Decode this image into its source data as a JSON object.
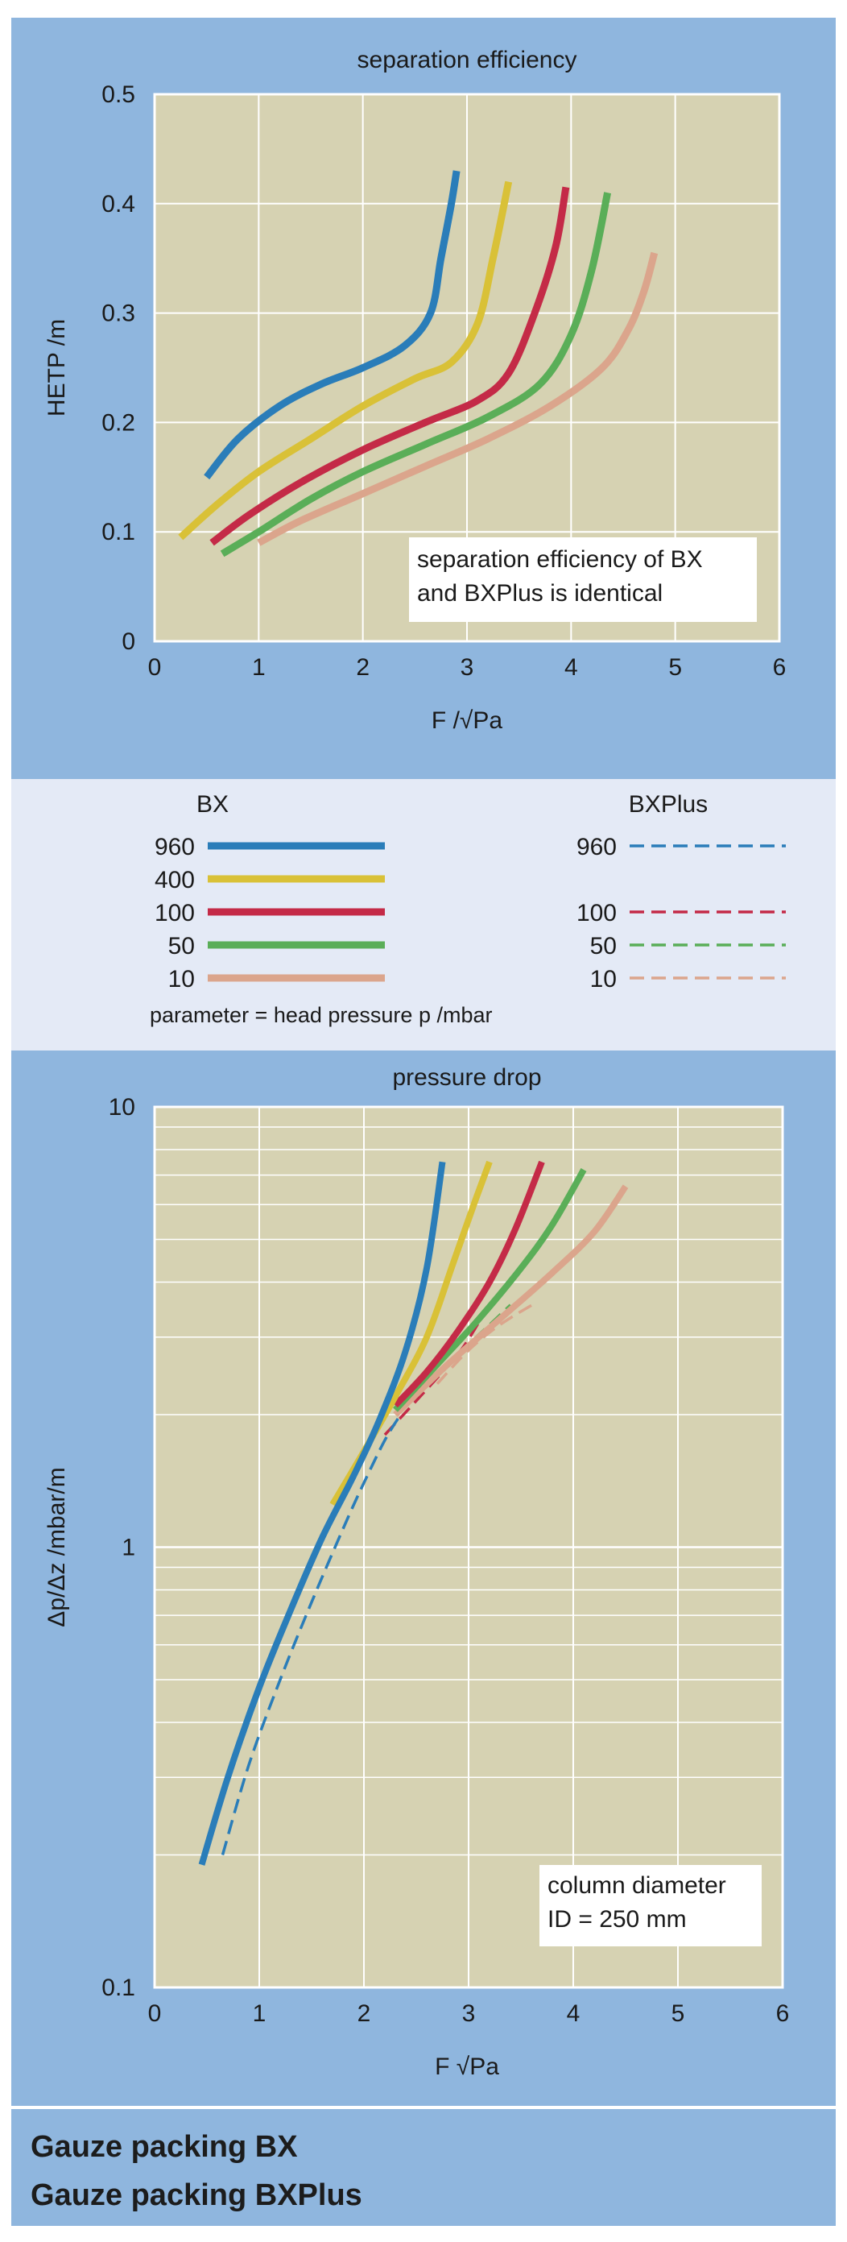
{
  "chart_data": [
    {
      "type": "line",
      "title": "separation efficiency",
      "xlabel": "F /√Pa",
      "ylabel": "HETP /m",
      "xlim": [
        0,
        6
      ],
      "ylim": [
        0,
        0.5
      ],
      "xticks": [
        "0",
        "1",
        "2",
        "3",
        "4",
        "5",
        "6"
      ],
      "yticks": [
        "0",
        "0.1",
        "0.2",
        "0.3",
        "0.4",
        "0.5"
      ],
      "grid": true,
      "annotation": [
        "separation efficiency of BX",
        "and BXPlus is identical"
      ],
      "series": [
        {
          "name": "960",
          "color": "#2a7db9",
          "values": [
            [
              0.5,
              0.15
            ],
            [
              0.8,
              0.185
            ],
            [
              1.2,
              0.215
            ],
            [
              1.6,
              0.235
            ],
            [
              2.0,
              0.25
            ],
            [
              2.4,
              0.27
            ],
            [
              2.65,
              0.3
            ],
            [
              2.75,
              0.35
            ],
            [
              2.85,
              0.4
            ],
            [
              2.9,
              0.43
            ]
          ]
        },
        {
          "name": "400",
          "color": "#d9c137",
          "values": [
            [
              0.25,
              0.095
            ],
            [
              0.6,
              0.125
            ],
            [
              1.0,
              0.155
            ],
            [
              1.5,
              0.185
            ],
            [
              2.0,
              0.215
            ],
            [
              2.5,
              0.24
            ],
            [
              2.85,
              0.255
            ],
            [
              3.1,
              0.29
            ],
            [
              3.25,
              0.35
            ],
            [
              3.4,
              0.42
            ]
          ]
        },
        {
          "name": "100",
          "color": "#c42a47",
          "values": [
            [
              0.55,
              0.09
            ],
            [
              0.9,
              0.115
            ],
            [
              1.4,
              0.145
            ],
            [
              2.0,
              0.175
            ],
            [
              2.6,
              0.2
            ],
            [
              3.1,
              0.22
            ],
            [
              3.4,
              0.245
            ],
            [
              3.65,
              0.3
            ],
            [
              3.85,
              0.36
            ],
            [
              3.95,
              0.415
            ]
          ]
        },
        {
          "name": "50",
          "color": "#5aae58",
          "values": [
            [
              0.65,
              0.08
            ],
            [
              1.0,
              0.1
            ],
            [
              1.5,
              0.13
            ],
            [
              2.0,
              0.155
            ],
            [
              2.6,
              0.18
            ],
            [
              3.2,
              0.205
            ],
            [
              3.7,
              0.235
            ],
            [
              4.0,
              0.28
            ],
            [
              4.2,
              0.34
            ],
            [
              4.35,
              0.41
            ]
          ]
        },
        {
          "name": "10",
          "color": "#dba58c",
          "values": [
            [
              1.0,
              0.09
            ],
            [
              1.4,
              0.11
            ],
            [
              2.0,
              0.135
            ],
            [
              2.6,
              0.16
            ],
            [
              3.2,
              0.185
            ],
            [
              3.8,
              0.215
            ],
            [
              4.3,
              0.25
            ],
            [
              4.55,
              0.285
            ],
            [
              4.7,
              0.32
            ],
            [
              4.8,
              0.355
            ]
          ]
        }
      ]
    },
    {
      "type": "line",
      "title": "pressure drop",
      "xlabel": "F √Pa",
      "ylabel": "Δp/Δz /mbar/m",
      "xlim": [
        0,
        6
      ],
      "ylim": [
        0.1,
        10
      ],
      "yscale": "log",
      "xticks": [
        "0",
        "1",
        "2",
        "3",
        "4",
        "5",
        "6"
      ],
      "yticks": [
        "0.1",
        "1",
        "10"
      ],
      "grid": true,
      "annotation": [
        "column diameter",
        "ID = 250 mm"
      ],
      "series": [
        {
          "name": "BX 960",
          "color": "#2a7db9",
          "dashed": false,
          "values": [
            [
              0.45,
              0.19
            ],
            [
              0.7,
              0.3
            ],
            [
              1.0,
              0.48
            ],
            [
              1.3,
              0.72
            ],
            [
              1.6,
              1.05
            ],
            [
              1.9,
              1.45
            ],
            [
              2.15,
              1.95
            ],
            [
              2.4,
              2.8
            ],
            [
              2.6,
              4.3
            ],
            [
              2.75,
              7.5
            ]
          ]
        },
        {
          "name": "BX 400",
          "color": "#d9c137",
          "dashed": false,
          "values": [
            [
              1.7,
              1.25
            ],
            [
              2.0,
              1.65
            ],
            [
              2.3,
              2.2
            ],
            [
              2.6,
              3.0
            ],
            [
              2.85,
              4.4
            ],
            [
              3.05,
              6.0
            ],
            [
              3.2,
              7.5
            ]
          ]
        },
        {
          "name": "BX 100",
          "color": "#c42a47",
          "dashed": false,
          "values": [
            [
              2.3,
              2.1
            ],
            [
              2.6,
              2.5
            ],
            [
              2.9,
              3.1
            ],
            [
              3.2,
              4.0
            ],
            [
              3.45,
              5.3
            ],
            [
              3.7,
              7.5
            ]
          ]
        },
        {
          "name": "BX 50",
          "color": "#5aae58",
          "dashed": false,
          "values": [
            [
              2.3,
              2.05
            ],
            [
              2.7,
              2.6
            ],
            [
              3.1,
              3.3
            ],
            [
              3.5,
              4.3
            ],
            [
              3.8,
              5.4
            ],
            [
              4.1,
              7.2
            ]
          ]
        },
        {
          "name": "BX 10",
          "color": "#dba58c",
          "dashed": false,
          "values": [
            [
              2.3,
              2.0
            ],
            [
              2.8,
              2.6
            ],
            [
              3.3,
              3.3
            ],
            [
              3.8,
              4.2
            ],
            [
              4.2,
              5.2
            ],
            [
              4.5,
              6.6
            ]
          ]
        },
        {
          "name": "BXPlus 960",
          "color": "#2a7db9",
          "dashed": true,
          "values": [
            [
              0.65,
              0.2
            ],
            [
              0.9,
              0.32
            ],
            [
              1.2,
              0.5
            ],
            [
              1.5,
              0.75
            ],
            [
              1.8,
              1.1
            ],
            [
              2.0,
              1.4
            ],
            [
              2.2,
              1.75
            ],
            [
              2.35,
              2.0
            ]
          ]
        },
        {
          "name": "BXPlus 100",
          "color": "#c42a47",
          "dashed": true,
          "values": [
            [
              2.2,
              1.8
            ],
            [
              2.5,
              2.15
            ],
            [
              2.75,
              2.5
            ],
            [
              2.95,
              2.85
            ],
            [
              3.15,
              3.4
            ]
          ]
        },
        {
          "name": "BXPlus 50",
          "color": "#5aae58",
          "dashed": true,
          "values": [
            [
              2.6,
              2.35
            ],
            [
              2.9,
              2.75
            ],
            [
              3.2,
              3.2
            ],
            [
              3.4,
              3.55
            ]
          ]
        },
        {
          "name": "BXPlus 10",
          "color": "#dba58c",
          "dashed": true,
          "values": [
            [
              2.7,
              2.35
            ],
            [
              3.0,
              2.8
            ],
            [
              3.3,
              3.2
            ],
            [
              3.65,
              3.6
            ]
          ]
        }
      ]
    }
  ],
  "legend": {
    "bx_header": "BX",
    "bxplus_header": "BXPlus",
    "bx_items": [
      {
        "label": "960",
        "color": "#2a7db9"
      },
      {
        "label": "400",
        "color": "#d9c137"
      },
      {
        "label": "100",
        "color": "#c42a47"
      },
      {
        "label": "50",
        "color": "#5aae58"
      },
      {
        "label": "10",
        "color": "#dba58c"
      }
    ],
    "bxplus_items": [
      {
        "label": "960",
        "color": "#2a7db9"
      },
      {
        "label": "100",
        "color": "#c42a47"
      },
      {
        "label": "50",
        "color": "#5aae58"
      },
      {
        "label": "10",
        "color": "#dba58c"
      }
    ],
    "parameter_note": "parameter = head pressure p /mbar"
  },
  "footer": {
    "line1": "Gauze packing BX",
    "line2": "Gauze packing BXPlus"
  },
  "colors": {
    "panel_blue": "#8fb6de",
    "panel_light": "#e4eaf6",
    "plot_bg": "#d6d2b2"
  }
}
